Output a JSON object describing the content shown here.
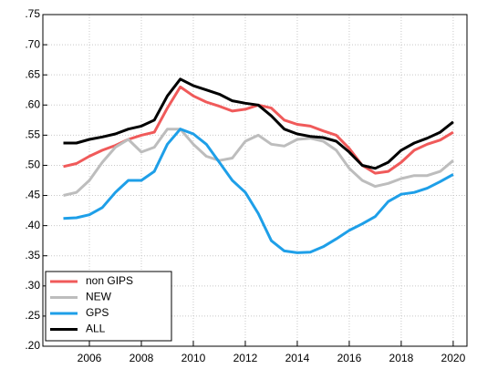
{
  "chart_data": {
    "type": "line",
    "x": [
      2005,
      2005.5,
      2006,
      2006.5,
      2007,
      2007.5,
      2008,
      2008.5,
      2009,
      2009.5,
      2010,
      2010.5,
      2011,
      2011.5,
      2012,
      2012.5,
      2013,
      2013.5,
      2014,
      2014.5,
      2015,
      2015.5,
      2016,
      2016.5,
      2017,
      2017.5,
      2018,
      2018.5,
      2019,
      2019.5,
      2020
    ],
    "series": [
      {
        "name": "non GIPS",
        "color": "#f05a5a",
        "values": [
          0.498,
          0.503,
          0.515,
          0.525,
          0.533,
          0.543,
          0.55,
          0.555,
          0.595,
          0.63,
          0.615,
          0.605,
          0.598,
          0.59,
          0.593,
          0.6,
          0.595,
          0.575,
          0.568,
          0.565,
          0.557,
          0.55,
          0.528,
          0.5,
          0.487,
          0.49,
          0.505,
          0.525,
          0.535,
          0.542,
          0.555
        ]
      },
      {
        "name": "NEW",
        "color": "#bdbdbd",
        "values": [
          0.45,
          0.455,
          0.475,
          0.505,
          0.53,
          0.543,
          0.522,
          0.53,
          0.56,
          0.56,
          0.535,
          0.515,
          0.508,
          0.512,
          0.54,
          0.55,
          0.535,
          0.532,
          0.543,
          0.545,
          0.54,
          0.525,
          0.495,
          0.475,
          0.465,
          0.47,
          0.478,
          0.483,
          0.483,
          0.49,
          0.508
        ]
      },
      {
        "name": "GPS",
        "color": "#1e9fe8",
        "values": [
          0.412,
          0.413,
          0.418,
          0.43,
          0.455,
          0.475,
          0.475,
          0.49,
          0.535,
          0.56,
          0.552,
          0.535,
          0.505,
          0.475,
          0.455,
          0.42,
          0.375,
          0.358,
          0.355,
          0.356,
          0.365,
          0.378,
          0.392,
          0.403,
          0.415,
          0.44,
          0.452,
          0.455,
          0.462,
          0.473,
          0.485
        ]
      },
      {
        "name": "ALL",
        "color": "#000000",
        "values": [
          0.537,
          0.537,
          0.543,
          0.547,
          0.552,
          0.56,
          0.565,
          0.575,
          0.615,
          0.643,
          0.632,
          0.625,
          0.618,
          0.607,
          0.603,
          0.6,
          0.582,
          0.56,
          0.552,
          0.548,
          0.546,
          0.54,
          0.522,
          0.5,
          0.495,
          0.505,
          0.525,
          0.537,
          0.545,
          0.555,
          0.572
        ]
      }
    ],
    "xlim": [
      2004.21,
      2020.53
    ],
    "xticks": [
      2006,
      2008,
      2010,
      2012,
      2014,
      2016,
      2018,
      2020
    ],
    "ylim": [
      0.2,
      0.75
    ],
    "yticks": [
      {
        "value": 0.2,
        "label": ".20"
      },
      {
        "value": 0.25,
        "label": ".25"
      },
      {
        "value": 0.3,
        "label": ".30"
      },
      {
        "value": 0.35,
        "label": ".35"
      },
      {
        "value": 0.4,
        "label": ".40"
      },
      {
        "value": 0.45,
        "label": ".45"
      },
      {
        "value": 0.5,
        "label": ".50"
      },
      {
        "value": 0.55,
        "label": ".55"
      },
      {
        "value": 0.6,
        "label": ".60"
      },
      {
        "value": 0.65,
        "label": ".65"
      },
      {
        "value": 0.7,
        "label": ".70"
      },
      {
        "value": 0.75,
        "label": ".75"
      }
    ],
    "grid": true,
    "legend": "lower left"
  }
}
